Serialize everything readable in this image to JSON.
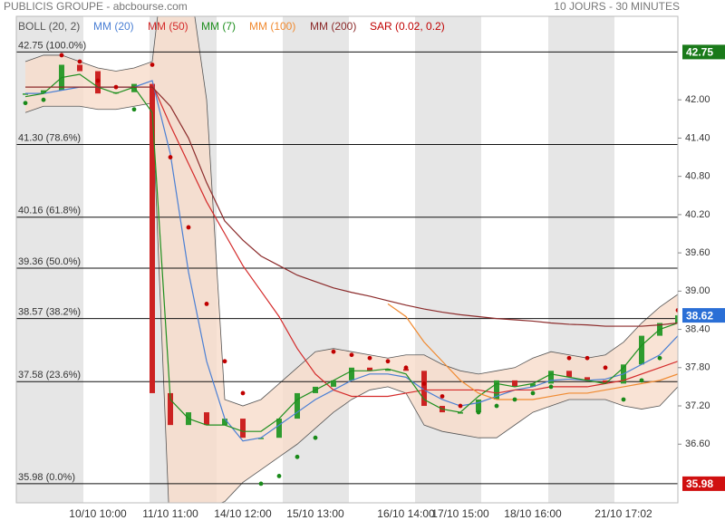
{
  "chart_data": {
    "type": "stock",
    "title": "PUBLICIS GROUPE - abcbourse.com",
    "subtitle": "10 JOURS - 30 MINUTES",
    "categories": [
      null,
      null,
      null,
      null,
      "10/10 10:00",
      null,
      null,
      null,
      "11/10 11:00",
      null,
      null,
      null,
      "14/10 12:00",
      null,
      null,
      null,
      "15/10 13:00",
      null,
      null,
      null,
      null,
      "16/10 14:00",
      null,
      null,
      "17/10 15:00",
      null,
      null,
      null,
      "18/10 16:00",
      null,
      null,
      null,
      null,
      "21/10 17:02",
      null,
      null,
      null
    ],
    "price": {
      "up_color": "#2e9b2e",
      "down_color": "#cc2222",
      "values": [
        42.1,
        42.15,
        42.55,
        42.45,
        42.1,
        42.12,
        42.25,
        37.4,
        36.9,
        37.1,
        36.9,
        37.0,
        36.7,
        36.7,
        37.0,
        37.4,
        37.5,
        37.6,
        37.8,
        37.75,
        37.78,
        37.75,
        37.2,
        37.1,
        37.1,
        37.3,
        37.6,
        37.5,
        37.55,
        37.75,
        37.65,
        37.6,
        37.55,
        37.85,
        38.3,
        38.5,
        38.62
      ]
    },
    "bollinger": {
      "name": "BOLL (20, 2)",
      "color": "#555555",
      "fill": "#f7dccb",
      "upper": [
        42.6,
        42.7,
        42.7,
        42.6,
        42.5,
        42.45,
        42.5,
        42.6,
        45.0,
        44.0,
        42.0,
        37.3,
        37.2,
        37.3,
        37.55,
        37.8,
        38.05,
        38.1,
        38.05,
        38.0,
        37.95,
        38.0,
        38.0,
        37.85,
        37.75,
        37.7,
        37.75,
        37.8,
        37.95,
        38.05,
        38.0,
        37.95,
        38.0,
        38.2,
        38.5,
        38.75,
        38.95
      ],
      "lower": [
        41.8,
        41.9,
        41.9,
        41.9,
        41.85,
        41.85,
        41.9,
        41.95,
        35.0,
        35.3,
        35.6,
        35.7,
        36.0,
        36.2,
        36.4,
        36.6,
        36.85,
        37.1,
        37.3,
        37.45,
        37.5,
        37.4,
        36.9,
        36.8,
        36.75,
        36.7,
        36.7,
        36.9,
        37.1,
        37.2,
        37.3,
        37.3,
        37.3,
        37.2,
        37.15,
        37.2,
        37.5
      ]
    },
    "series": [
      {
        "name": "MM (20)",
        "color": "#4a7fd4",
        "values": [
          42.1,
          42.1,
          42.15,
          42.2,
          42.2,
          42.2,
          42.2,
          42.3,
          41.15,
          39.3,
          37.9,
          37.0,
          36.65,
          36.7,
          36.9,
          37.1,
          37.3,
          37.45,
          37.6,
          37.7,
          37.7,
          37.65,
          37.45,
          37.3,
          37.2,
          37.25,
          37.35,
          37.45,
          37.5,
          37.6,
          37.62,
          37.6,
          37.62,
          37.7,
          37.85,
          38.0,
          38.3
        ]
      },
      {
        "name": "MM (50)",
        "color": "#d42a2a",
        "values": [
          null,
          null,
          null,
          null,
          null,
          null,
          null,
          42.25,
          41.6,
          41.0,
          40.4,
          39.9,
          39.4,
          39.0,
          38.6,
          38.1,
          37.7,
          37.45,
          37.35,
          37.35,
          37.35,
          37.4,
          37.45,
          37.45,
          37.45,
          37.45,
          37.4,
          37.45,
          37.45,
          37.5,
          37.5,
          37.5,
          37.55,
          37.6,
          37.7,
          37.8,
          37.9
        ]
      },
      {
        "name": "MM (7)",
        "color": "#1f8f1f",
        "values": [
          42.05,
          42.1,
          42.35,
          42.4,
          42.2,
          42.1,
          42.2,
          41.8,
          37.3,
          37.0,
          36.9,
          36.9,
          36.8,
          36.8,
          37.0,
          37.3,
          37.45,
          37.6,
          37.75,
          37.75,
          37.78,
          37.7,
          37.3,
          37.15,
          37.1,
          37.35,
          37.55,
          37.5,
          37.55,
          37.7,
          37.65,
          37.6,
          37.55,
          37.8,
          38.15,
          38.4,
          38.5
        ]
      },
      {
        "name": "MM (100)",
        "color": "#f08a30",
        "values": [
          null,
          null,
          null,
          null,
          null,
          null,
          null,
          null,
          null,
          null,
          null,
          null,
          null,
          null,
          null,
          null,
          null,
          null,
          null,
          null,
          38.8,
          38.6,
          38.2,
          37.9,
          37.6,
          37.4,
          37.3,
          37.3,
          37.3,
          37.35,
          37.4,
          37.4,
          37.45,
          37.5,
          37.55,
          37.6,
          37.7
        ]
      },
      {
        "name": "MM (200)",
        "color": "#8b2a2a",
        "values": [
          42.2,
          42.2,
          42.2,
          42.2,
          42.2,
          42.2,
          42.2,
          42.2,
          41.9,
          41.4,
          40.7,
          40.1,
          39.8,
          39.55,
          39.4,
          39.25,
          39.15,
          39.05,
          38.98,
          38.92,
          38.85,
          38.78,
          38.72,
          38.67,
          38.63,
          38.6,
          38.57,
          38.55,
          38.53,
          38.5,
          38.48,
          38.47,
          38.45,
          38.45,
          38.45,
          38.47,
          38.5
        ]
      }
    ],
    "sar": {
      "name": "SAR (0.02, 0.2)",
      "color": "#c00000",
      "color_below": "#1a8a1a",
      "values": [
        41.95,
        42.0,
        42.7,
        42.6,
        42.3,
        42.2,
        41.85,
        42.55,
        41.1,
        40.0,
        38.8,
        37.9,
        37.4,
        35.98,
        36.1,
        36.4,
        36.7,
        38.05,
        38.0,
        37.95,
        37.9,
        37.8,
        37.55,
        37.35,
        37.2,
        37.1,
        37.2,
        37.3,
        37.4,
        37.5,
        37.95,
        37.95,
        37.8,
        37.3,
        37.6,
        37.95,
        38.7
      ]
    },
    "levels": [
      {
        "value": 42.75,
        "label": "42.75 (100.0%)"
      },
      {
        "value": 41.3,
        "label": "41.30 (78.6%)"
      },
      {
        "value": 40.16,
        "label": "40.16 (61.8%)"
      },
      {
        "value": 39.36,
        "label": "39.36 (50.0%)"
      },
      {
        "value": 38.57,
        "label": "38.57 (38.2%)"
      },
      {
        "value": 37.58,
        "label": "37.58 (23.6%)"
      },
      {
        "value": 35.98,
        "label": "35.98 (0.0%)"
      }
    ],
    "badges": [
      {
        "value": 42.75,
        "color": "#1a7a1a"
      },
      {
        "value": 38.62,
        "color": "#2a6fd6"
      },
      {
        "value": 35.98,
        "color": "#d01010"
      }
    ],
    "ylim": [
      35.68,
      43.31
    ],
    "yticks": [
      {
        "value": 36.6,
        "label": "36.60"
      },
      {
        "value": 37.2,
        "label": "37.20"
      },
      {
        "value": 37.8,
        "label": "37.80"
      },
      {
        "value": 38.4,
        "label": "38.40"
      },
      {
        "value": 39.0,
        "label": "39.00"
      },
      {
        "value": 39.6,
        "label": "39.60"
      },
      {
        "value": 40.2,
        "label": "40.20"
      },
      {
        "value": 40.8,
        "label": "40.80"
      },
      {
        "value": 41.4,
        "label": "41.40"
      },
      {
        "value": 42.0,
        "label": "42.00"
      }
    ]
  }
}
